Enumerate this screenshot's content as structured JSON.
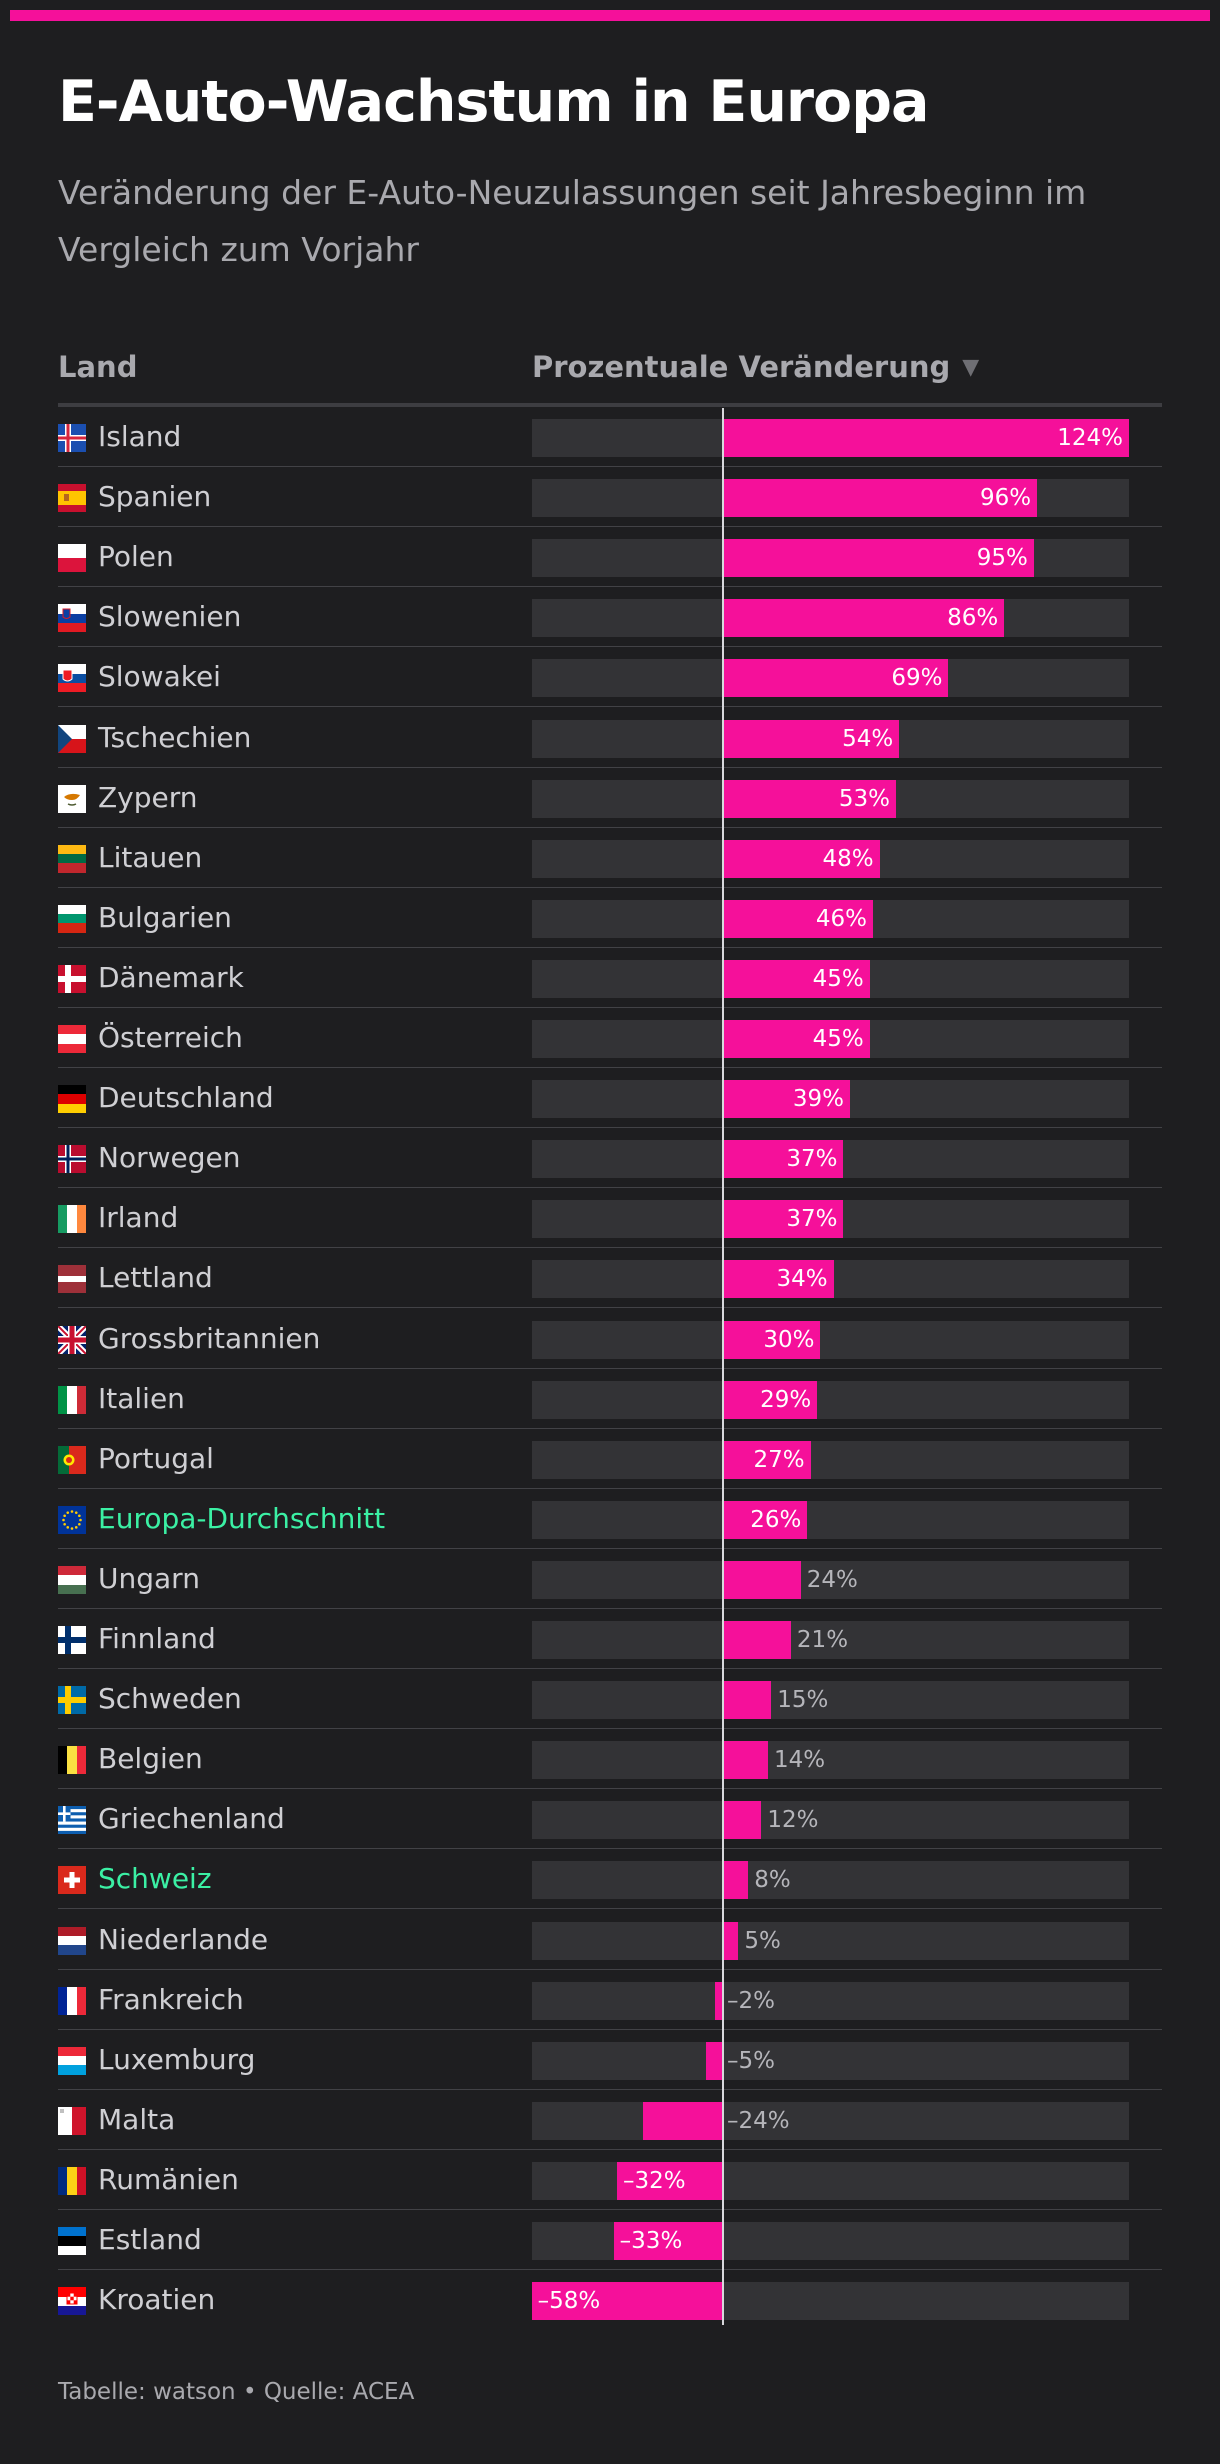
{
  "header": {
    "title": "E-Auto-Wachstum in Europa",
    "subtitle": "Veränderung der E-Auto-Neuzulassungen seit Jahresbeginn im Vergleich zum Vorjahr"
  },
  "table": {
    "col_land": "Land",
    "col_change": "Prozentuale Veränderung",
    "sort_icon": "▼"
  },
  "footer": {
    "text": "Tabelle: watson • Quelle: ACEA"
  },
  "colors": {
    "accent": "#f5109a",
    "highlight_text": "#3bf0a4",
    "background": "#1e1e20",
    "track": "#333336"
  },
  "chart_data": {
    "type": "bar",
    "orientation": "horizontal",
    "xlim": [
      -58,
      124
    ],
    "categories": [
      "Island",
      "Spanien",
      "Polen",
      "Slowenien",
      "Slowakei",
      "Tschechien",
      "Zypern",
      "Litauen",
      "Bulgarien",
      "Dänemark",
      "Österreich",
      "Deutschland",
      "Norwegen",
      "Irland",
      "Lettland",
      "Grossbritannien",
      "Italien",
      "Portugal",
      "Europa-Durchschnitt",
      "Ungarn",
      "Finnland",
      "Schweden",
      "Belgien",
      "Griechenland",
      "Schweiz",
      "Niederlande",
      "Frankreich",
      "Luxemburg",
      "Malta",
      "Rumänien",
      "Estland",
      "Kroatien"
    ],
    "values": [
      124,
      96,
      95,
      86,
      69,
      54,
      53,
      48,
      46,
      45,
      45,
      39,
      37,
      37,
      34,
      30,
      29,
      27,
      26,
      24,
      21,
      15,
      14,
      12,
      8,
      5,
      -2,
      -5,
      -24,
      -32,
      -33,
      -58
    ],
    "labels": [
      "124%",
      "96%",
      "95%",
      "86%",
      "69%",
      "54%",
      "53%",
      "48%",
      "46%",
      "45%",
      "45%",
      "39%",
      "37%",
      "37%",
      "34%",
      "30%",
      "29%",
      "27%",
      "26%",
      "24%",
      "21%",
      "15%",
      "14%",
      "12%",
      "8%",
      "5%",
      "–2%",
      "–5%",
      "–24%",
      "–32%",
      "–33%",
      "–58%"
    ],
    "highlighted": [
      "Europa-Durchschnitt",
      "Schweiz"
    ],
    "flags": [
      "iceland-flag-icon",
      "spain-flag-icon",
      "poland-flag-icon",
      "slovenia-flag-icon",
      "slovakia-flag-icon",
      "czechia-flag-icon",
      "cyprus-flag-icon",
      "lithuania-flag-icon",
      "bulgaria-flag-icon",
      "denmark-flag-icon",
      "austria-flag-icon",
      "germany-flag-icon",
      "norway-flag-icon",
      "ireland-flag-icon",
      "latvia-flag-icon",
      "uk-flag-icon",
      "italy-flag-icon",
      "portugal-flag-icon",
      "eu-flag-icon",
      "hungary-flag-icon",
      "finland-flag-icon",
      "sweden-flag-icon",
      "belgium-flag-icon",
      "greece-flag-icon",
      "switzerland-flag-icon",
      "netherlands-flag-icon",
      "france-flag-icon",
      "luxembourg-flag-icon",
      "malta-flag-icon",
      "romania-flag-icon",
      "estonia-flag-icon",
      "croatia-flag-icon"
    ]
  }
}
